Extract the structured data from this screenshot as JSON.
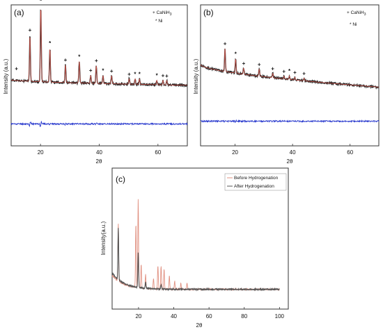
{
  "chart_data": [
    {
      "panel": "(a)",
      "type": "line",
      "xlabel": "2θ",
      "ylabel": "Intensity (a.u.)",
      "xlim": [
        10,
        70
      ],
      "xticks": [
        20,
        40,
        60
      ],
      "ylim": [
        -30,
        100
      ],
      "legend": {
        "placement": "top-right",
        "entries": [
          {
            "symbol": "+",
            "text": "CaNiH",
            "sub": "3"
          },
          {
            "symbol": "*",
            "text": "Ni"
          }
        ]
      },
      "baseline": {
        "start": 28,
        "end": 22
      },
      "peaks": [
        {
          "x": 16.4,
          "h": 52,
          "marker": "+"
        },
        {
          "x": 20.1,
          "h": 85,
          "marker": "*"
        },
        {
          "x": 23.2,
          "h": 38,
          "marker": "*"
        },
        {
          "x": 28.5,
          "h": 20,
          "marker": "+"
        },
        {
          "x": 33.2,
          "h": 24,
          "marker": "*"
        },
        {
          "x": 37.1,
          "h": 9,
          "marker": "+"
        },
        {
          "x": 39.0,
          "h": 20,
          "marker": "+"
        },
        {
          "x": 41.3,
          "h": 9,
          "marker": "*"
        },
        {
          "x": 44.2,
          "h": 9,
          "marker": "+"
        },
        {
          "x": 50.2,
          "h": 6,
          "marker": "+"
        },
        {
          "x": 52.2,
          "h": 6,
          "marker": "*"
        },
        {
          "x": 53.7,
          "h": 6,
          "marker": "*"
        },
        {
          "x": 59.6,
          "h": 5,
          "marker": "*"
        },
        {
          "x": 61.7,
          "h": 5,
          "marker": "+"
        },
        {
          "x": 63.0,
          "h": 5,
          "marker": "+"
        }
      ],
      "extra_markers": [
        {
          "x": 11.8,
          "h": 8,
          "marker": "+"
        }
      ],
      "residual_level": -21,
      "colors": {
        "observed": "#222222",
        "calculated": "#e05a4f",
        "residual": "#2233cc"
      }
    },
    {
      "panel": "(b)",
      "type": "line",
      "xlabel": "2θ",
      "ylabel": "Intensity (a.u.)",
      "xlim": [
        8,
        70
      ],
      "xticks": [
        20,
        40,
        60
      ],
      "ylim": [
        -30,
        100
      ],
      "legend": {
        "placement": "top-right",
        "entries": [
          {
            "symbol": "+",
            "text": "CaNiH",
            "sub": "3"
          },
          {
            "symbol": "*",
            "text": "Ni"
          }
        ]
      },
      "baseline": {
        "start": 45,
        "end": 20
      },
      "peaks": [
        {
          "x": 16.5,
          "h": 26,
          "marker": "+"
        },
        {
          "x": 20.2,
          "h": 16,
          "marker": "*"
        },
        {
          "x": 23.0,
          "h": 7,
          "marker": "+"
        },
        {
          "x": 28.4,
          "h": 8,
          "marker": "+"
        },
        {
          "x": 33.1,
          "h": 5,
          "marker": "+"
        },
        {
          "x": 37.0,
          "h": 3,
          "marker": "+"
        },
        {
          "x": 38.9,
          "h": 4,
          "marker": "*"
        },
        {
          "x": 40.8,
          "h": 3,
          "marker": "+"
        },
        {
          "x": 44.0,
          "h": 3,
          "marker": "+"
        }
      ],
      "extra_markers": [],
      "residual_level": -18,
      "colors": {
        "observed": "#222222",
        "calculated": "#e05a4f",
        "residual": "#2233cc"
      }
    },
    {
      "panel": "(c)",
      "type": "line",
      "xlabel": "2θ",
      "ylabel": "Intensity(a.u.)",
      "xlim": [
        5,
        105
      ],
      "xticks": [
        20,
        40,
        60,
        80,
        100
      ],
      "ylim": [
        0,
        100
      ],
      "legend": {
        "placement": "top-right",
        "entries": [
          {
            "text": "Before Hydrogenation",
            "color": "#e09080"
          },
          {
            "text": "After Hydrogenation",
            "color": "#555555"
          }
        ]
      },
      "series": [
        {
          "name": "Before Hydrogenation",
          "color": "#e09080",
          "x_range": [
            5,
            100
          ],
          "baseline": {
            "start": 20,
            "end": 8
          },
          "peaks": [
            {
              "x": 8.5,
              "h": 50
            },
            {
              "x": 18.5,
              "h": 55
            },
            {
              "x": 19.8,
              "h": 76
            },
            {
              "x": 21.5,
              "h": 20
            },
            {
              "x": 24.0,
              "h": 12
            },
            {
              "x": 28.5,
              "h": 9
            },
            {
              "x": 31.0,
              "h": 20
            },
            {
              "x": 32.8,
              "h": 20
            },
            {
              "x": 34.5,
              "h": 17
            },
            {
              "x": 37.5,
              "h": 12
            },
            {
              "x": 40.5,
              "h": 7
            },
            {
              "x": 44.0,
              "h": 5
            },
            {
              "x": 47.5,
              "h": 5
            }
          ]
        },
        {
          "name": "After Hydrogenation",
          "color": "#555555",
          "x_range": [
            5,
            100
          ],
          "baseline": {
            "start": 22,
            "end": 8
          },
          "peaks": [
            {
              "x": 8.5,
              "h": 45
            },
            {
              "x": 19.8,
              "h": 30
            },
            {
              "x": 24.0,
              "h": 5
            },
            {
              "x": 32.8,
              "h": 4
            }
          ]
        }
      ]
    }
  ]
}
